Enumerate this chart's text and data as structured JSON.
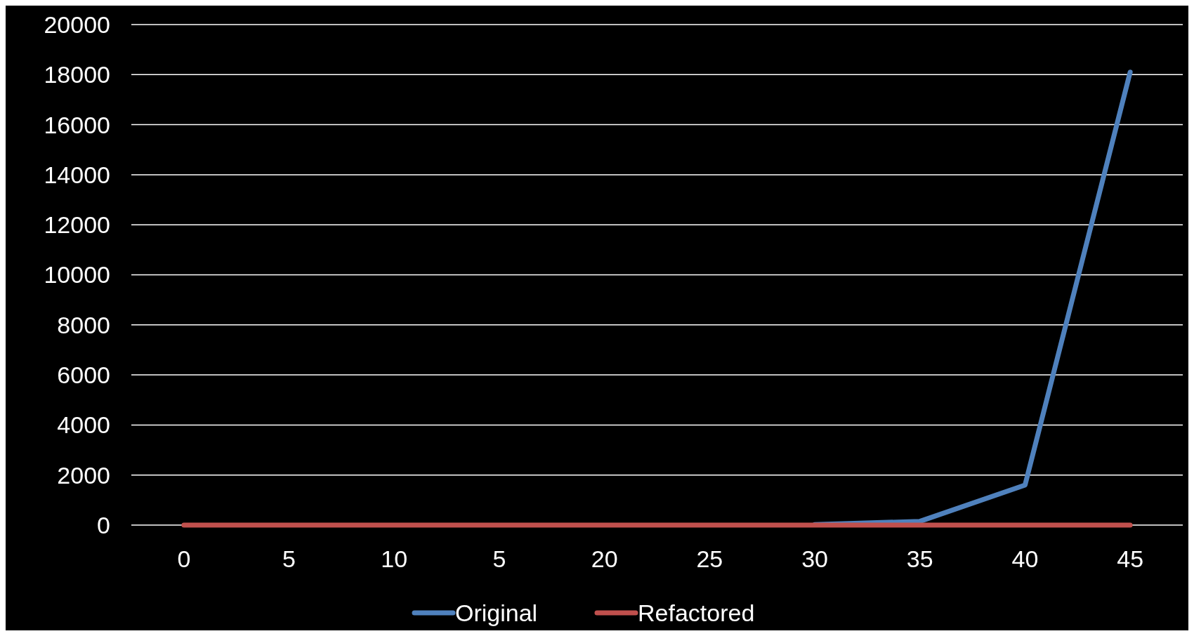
{
  "chart_data": {
    "type": "line",
    "categories": [
      "0",
      "5",
      "10",
      "5",
      "20",
      "25",
      "30",
      "35",
      "40",
      "45"
    ],
    "series": [
      {
        "name": "Original",
        "color": "#4f81bd",
        "values": [
          null,
          null,
          null,
          null,
          null,
          null,
          20,
          150,
          1600,
          18100
        ]
      },
      {
        "name": "Refactored",
        "color": "#c0504d",
        "values": [
          0,
          0,
          0,
          0,
          0,
          0,
          0,
          0,
          0,
          0
        ]
      }
    ],
    "ylim": [
      0,
      20000
    ],
    "yticks": [
      0,
      2000,
      4000,
      6000,
      8000,
      10000,
      12000,
      14000,
      16000,
      18000,
      20000
    ],
    "grid": "y",
    "legend": "bottom",
    "marker": "none",
    "line_style": "solid"
  }
}
